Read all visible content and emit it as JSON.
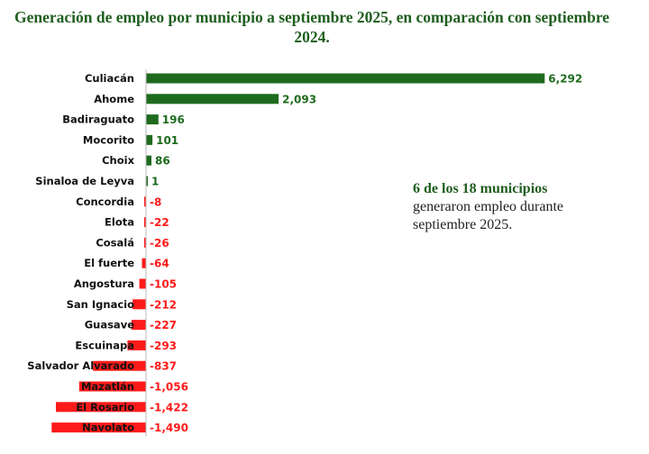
{
  "chart_data": {
    "type": "bar",
    "orientation": "horizontal",
    "title": "Generación de empleo por municipio a septiembre 2025, en comparación con septiembre 2024.",
    "categories": [
      "Culiacán",
      "Ahome",
      "Badiraguato",
      "Mocorito",
      "Choix",
      "Sinaloa de Leyva",
      "Concordia",
      "Elota",
      "Cosalá",
      "El fuerte",
      "Angostura",
      "San Ignacio",
      "Guasave",
      "Escuinapa",
      "Salvador Alvarado",
      "Mazatlán",
      "El Rosario",
      "Navolato"
    ],
    "values": [
      6292,
      2093,
      196,
      101,
      86,
      1,
      -8,
      -22,
      -26,
      -64,
      -105,
      -212,
      -227,
      -293,
      -837,
      -1056,
      -1422,
      -1490
    ],
    "value_labels": [
      "6,292",
      "2,093",
      "196",
      "101",
      "86",
      "1",
      "-8",
      "-22",
      "-26",
      "-64",
      "-105",
      "-212",
      "-227",
      "-293",
      "-837",
      "-1,056",
      "-1,422",
      "-1,490"
    ],
    "colors": {
      "positive": "#1e6b1e",
      "negative": "#ff1a1a",
      "axis": "#bbbbbb"
    },
    "grid": false,
    "legend": "none"
  },
  "annotation": {
    "highlight": "6 de los 18 municipios",
    "text": "generaron empleo durante septiembre 2025."
  }
}
